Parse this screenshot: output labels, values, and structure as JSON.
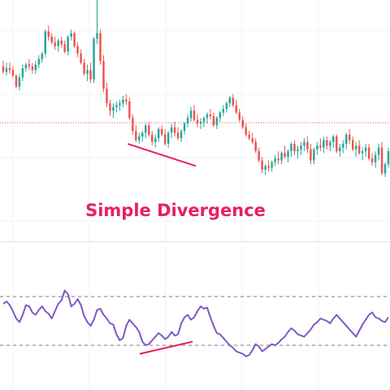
{
  "chart_data": [
    {
      "type": "candlestick",
      "annotation": "Simple Divergence",
      "grid": true,
      "colors": {
        "up": "#26a69a",
        "down": "#ef5350",
        "divergence": "#e91e63",
        "price_line": "#ef5350"
      },
      "ylim": [
        0,
        100
      ],
      "price_line_value": 33.5,
      "candles": [
        [
          64,
          67,
          60,
          61
        ],
        [
          61,
          66,
          59,
          63
        ],
        [
          63,
          66,
          60,
          62
        ],
        [
          62,
          64,
          58,
          59
        ],
        [
          59,
          60,
          52,
          53
        ],
        [
          53,
          60,
          51,
          58
        ],
        [
          58,
          65,
          56,
          63
        ],
        [
          63,
          66,
          61,
          65
        ],
        [
          65,
          68,
          62,
          64
        ],
        [
          64,
          66,
          60,
          62
        ],
        [
          62,
          67,
          60,
          65
        ],
        [
          65,
          70,
          63,
          68
        ],
        [
          68,
          72,
          66,
          71
        ],
        [
          71,
          84,
          69,
          83
        ],
        [
          83,
          86,
          78,
          80
        ],
        [
          80,
          82,
          76,
          77
        ],
        [
          77,
          80,
          73,
          75
        ],
        [
          75,
          79,
          72,
          78
        ],
        [
          78,
          80,
          74,
          76
        ],
        [
          76,
          78,
          71,
          72
        ],
        [
          72,
          81,
          70,
          80
        ],
        [
          80,
          84,
          78,
          82
        ],
        [
          82,
          83,
          74,
          75
        ],
        [
          75,
          77,
          69,
          71
        ],
        [
          71,
          73,
          65,
          66
        ],
        [
          66,
          68,
          59,
          60
        ],
        [
          60,
          65,
          56,
          62
        ],
        [
          62,
          66,
          55,
          57
        ],
        [
          57,
          80,
          55,
          79
        ],
        [
          79,
          100,
          76,
          82
        ],
        [
          82,
          84,
          65,
          67
        ],
        [
          67,
          70,
          50,
          52
        ],
        [
          52,
          55,
          42,
          44
        ],
        [
          44,
          46,
          37,
          40
        ],
        [
          40,
          44,
          36,
          42
        ],
        [
          42,
          45,
          39,
          43
        ],
        [
          43,
          46,
          40,
          44
        ],
        [
          44,
          48,
          42,
          46
        ],
        [
          46,
          49,
          43,
          45
        ],
        [
          45,
          47,
          35,
          36
        ],
        [
          36,
          38,
          27,
          29
        ],
        [
          29,
          32,
          23,
          24
        ],
        [
          24,
          28,
          22,
          26
        ],
        [
          26,
          29,
          23,
          28
        ],
        [
          28,
          33,
          25,
          32
        ],
        [
          32,
          34,
          26,
          27
        ],
        [
          27,
          29,
          21,
          23
        ],
        [
          23,
          27,
          20,
          25
        ],
        [
          25,
          31,
          23,
          30
        ],
        [
          30,
          32,
          26,
          27
        ],
        [
          27,
          30,
          21,
          22
        ],
        [
          22,
          29,
          20,
          28
        ],
        [
          28,
          33,
          25,
          31
        ],
        [
          31,
          34,
          26,
          28
        ],
        [
          28,
          31,
          24,
          25
        ],
        [
          25,
          30,
          23,
          29
        ],
        [
          29,
          34,
          27,
          33
        ],
        [
          33,
          38,
          31,
          36
        ],
        [
          36,
          42,
          34,
          40
        ],
        [
          40,
          43,
          34,
          35
        ],
        [
          35,
          38,
          31,
          33
        ],
        [
          33,
          36,
          30,
          34
        ],
        [
          34,
          37,
          31,
          36
        ],
        [
          36,
          39,
          33,
          38
        ],
        [
          38,
          41,
          35,
          37
        ],
        [
          37,
          39,
          31,
          32
        ],
        [
          32,
          37,
          30,
          36
        ],
        [
          36,
          40,
          34,
          39
        ],
        [
          39,
          43,
          37,
          41
        ],
        [
          41,
          45,
          39,
          44
        ],
        [
          44,
          48,
          42,
          47
        ],
        [
          47,
          49,
          42,
          43
        ],
        [
          43,
          46,
          38,
          39
        ],
        [
          39,
          41,
          34,
          35
        ],
        [
          35,
          37,
          30,
          31
        ],
        [
          31,
          33,
          26,
          27
        ],
        [
          27,
          29,
          24,
          25
        ],
        [
          25,
          28,
          22,
          23
        ],
        [
          23,
          25,
          17,
          18
        ],
        [
          18,
          20,
          12,
          13
        ],
        [
          13,
          15,
          6,
          8
        ],
        [
          8,
          11,
          5,
          10
        ],
        [
          10,
          13,
          7,
          9
        ],
        [
          9,
          13,
          7,
          12
        ],
        [
          12,
          16,
          10,
          14
        ],
        [
          14,
          18,
          11,
          13
        ],
        [
          13,
          18,
          11,
          17
        ],
        [
          17,
          21,
          14,
          15
        ],
        [
          15,
          19,
          12,
          18
        ],
        [
          18,
          23,
          15,
          22
        ],
        [
          22,
          24,
          16,
          18
        ],
        [
          18,
          21,
          14,
          19
        ],
        [
          19,
          23,
          16,
          21
        ],
        [
          21,
          25,
          18,
          23
        ],
        [
          23,
          26,
          17,
          19
        ],
        [
          19,
          22,
          11,
          13
        ],
        [
          13,
          20,
          11,
          19
        ],
        [
          19,
          23,
          16,
          21
        ],
        [
          21,
          25,
          18,
          20
        ],
        [
          20,
          26,
          17,
          24
        ],
        [
          24,
          26,
          19,
          21
        ],
        [
          21,
          24,
          18,
          23
        ],
        [
          23,
          27,
          20,
          26
        ],
        [
          26,
          27,
          17,
          18
        ],
        [
          18,
          22,
          15,
          20
        ],
        [
          20,
          24,
          17,
          22
        ],
        [
          22,
          28,
          19,
          27
        ],
        [
          27,
          30,
          22,
          24
        ],
        [
          24,
          26,
          18,
          19
        ],
        [
          19,
          23,
          15,
          21
        ],
        [
          21,
          24,
          16,
          17
        ],
        [
          17,
          20,
          13,
          18
        ],
        [
          18,
          22,
          15,
          20
        ],
        [
          20,
          22,
          13,
          14
        ],
        [
          14,
          17,
          10,
          12
        ],
        [
          12,
          18,
          9,
          16
        ],
        [
          16,
          22,
          13,
          20
        ],
        [
          20,
          23,
          5,
          6
        ],
        [
          6,
          12,
          4,
          11
        ],
        [
          11,
          20,
          9,
          18
        ]
      ]
    },
    {
      "type": "line",
      "annotation": "",
      "color": "#7e57c2",
      "ylim": [
        0,
        100
      ],
      "levels": [
        70,
        30
      ],
      "values": [
        64,
        66,
        63,
        58,
        52,
        49,
        55,
        63,
        62,
        57,
        55,
        59,
        62,
        58,
        56,
        52,
        58,
        64,
        67,
        75,
        72,
        62,
        64,
        68,
        63,
        54,
        49,
        46,
        51,
        59,
        60,
        55,
        52,
        48,
        47,
        39,
        34,
        36,
        46,
        51,
        48,
        45,
        41,
        33,
        30,
        31,
        34,
        37,
        40,
        38,
        35,
        37,
        41,
        38,
        39,
        48,
        53,
        55,
        51,
        53,
        58,
        62,
        60,
        61,
        53,
        46,
        40,
        39,
        36,
        33,
        30,
        28,
        25,
        24,
        23,
        21,
        22,
        26,
        31,
        29,
        25,
        27,
        29,
        31,
        30,
        32,
        35,
        37,
        41,
        44,
        42,
        39,
        38,
        37,
        40,
        43,
        47,
        49,
        52,
        51,
        50,
        48,
        52,
        55,
        52,
        49,
        46,
        43,
        40,
        37,
        42,
        47,
        51,
        55,
        57,
        53,
        52,
        50,
        49,
        53
      ]
    }
  ]
}
